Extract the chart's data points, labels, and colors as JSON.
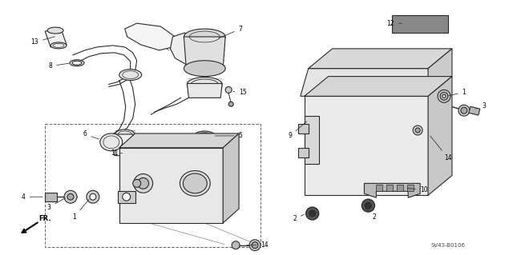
{
  "background_color": "#ffffff",
  "diagram_code": "SV43-B0106",
  "figsize": [
    6.4,
    3.19
  ],
  "dpi": 100,
  "line_color": "#2a2a2a",
  "lw": 0.8
}
